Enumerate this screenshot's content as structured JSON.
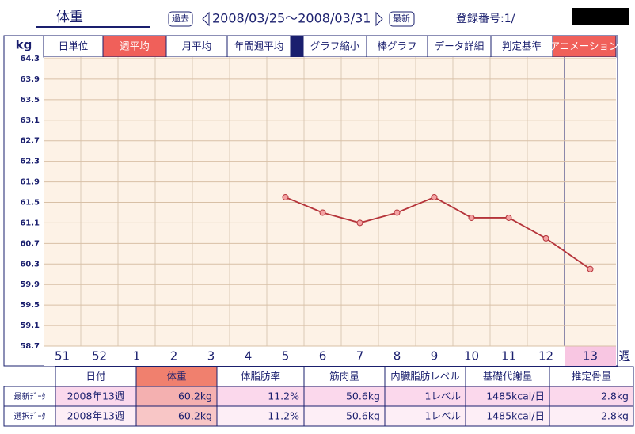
{
  "header": {
    "title": "体重",
    "prev": "過去",
    "range": "2008/03/25～2008/03/31",
    "latest": "最新",
    "reg_label": "登録番号:1/"
  },
  "tabs": [
    {
      "label": "日単位",
      "active": false
    },
    {
      "label": "週平均",
      "active": true
    },
    {
      "label": "月平均",
      "active": false
    },
    {
      "label": "年間週平均",
      "active": false
    },
    {
      "label": "グラフ縮小",
      "active": false
    },
    {
      "label": "棒グラフ",
      "active": false
    },
    {
      "label": "データ詳細",
      "active": false
    },
    {
      "label": "判定基準",
      "active": false
    },
    {
      "label": "アニメーション",
      "active": true
    }
  ],
  "chart_data": {
    "type": "line",
    "y_label": "kg",
    "x_label": "週",
    "categories": [
      "51",
      "52",
      "1",
      "2",
      "3",
      "4",
      "5",
      "6",
      "7",
      "8",
      "9",
      "10",
      "11",
      "12",
      "13"
    ],
    "values": [
      null,
      null,
      null,
      null,
      null,
      null,
      61.6,
      61.3,
      61.1,
      61.3,
      61.6,
      61.2,
      61.2,
      60.8,
      60.2
    ],
    "color": "#b5343a",
    "marker_color": "#f4a3a3",
    "ylim": [
      58.7,
      64.3
    ],
    "yticks": [
      64.3,
      63.9,
      63.5,
      63.1,
      62.7,
      62.3,
      61.9,
      61.5,
      61.1,
      60.7,
      60.3,
      59.9,
      59.5,
      59.1,
      58.7
    ],
    "grid": true
  },
  "table": {
    "columns": [
      "日付",
      "体重",
      "体脂肪率",
      "筋肉量",
      "内臓脂肪レベル",
      "基礎代謝量",
      "推定骨量"
    ],
    "rows": [
      [
        "最新ﾃﾞｰﾀ",
        "2008年13週",
        "60.2kg",
        "11.2%",
        "50.6kg",
        "1レベル",
        "1485kcal/日",
        "2.8kg"
      ],
      [
        "選択ﾃﾞｰﾀ",
        "2008年13週",
        "60.2kg",
        "11.2%",
        "50.6kg",
        "1レベル",
        "1485kcal/日",
        "2.8kg"
      ]
    ]
  }
}
